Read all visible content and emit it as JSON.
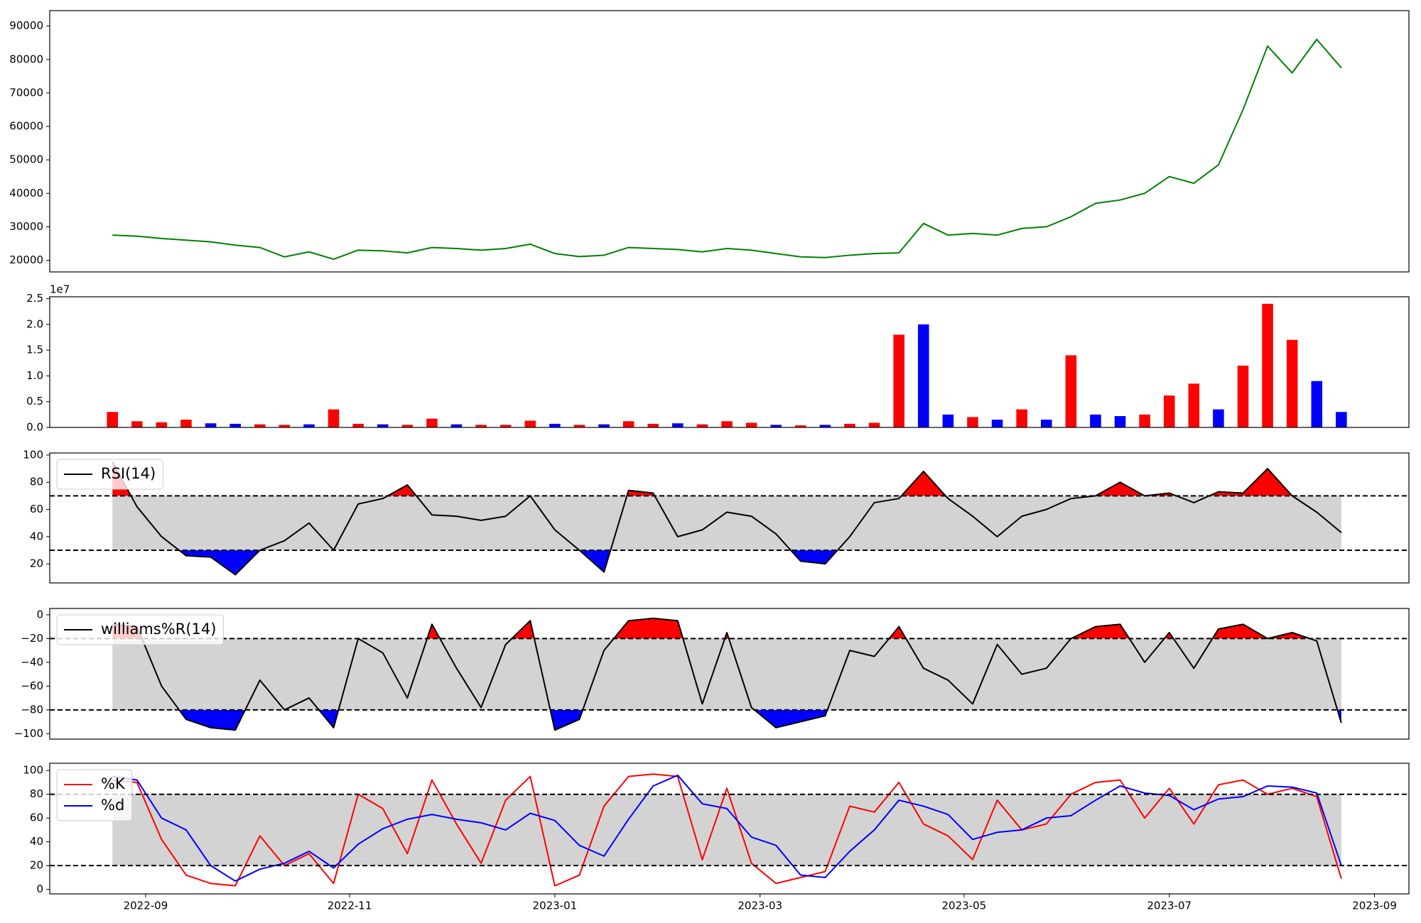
{
  "chart_data": [
    {
      "type": "line",
      "color": "green",
      "x": [
        2022.64,
        2022.66,
        2022.68,
        2022.7,
        2022.72,
        2022.74,
        2022.76,
        2022.78,
        2022.8,
        2022.82,
        2022.84,
        2022.86,
        2022.88,
        2022.9,
        2022.92,
        2022.94,
        2022.96,
        2022.98,
        2023,
        2023.02,
        2023.04,
        2023.06,
        2023.08,
        2023.1,
        2023.12,
        2023.14,
        2023.16,
        2023.18,
        2023.2,
        2023.22,
        2023.24,
        2023.26,
        2023.28,
        2023.3,
        2023.32,
        2023.34,
        2023.36,
        2023.38,
        2023.4,
        2023.42,
        2023.44,
        2023.46,
        2023.48,
        2023.5,
        2023.52,
        2023.54,
        2023.56,
        2023.58,
        2023.6,
        2023.62,
        2023.64
      ],
      "values": [
        27500,
        27200,
        26500,
        26000,
        25500,
        24500,
        23800,
        21000,
        22500,
        20300,
        23000,
        22800,
        22200,
        23800,
        23500,
        23000,
        23500,
        24800,
        22000,
        21100,
        21500,
        23800,
        23500,
        23200,
        22500,
        23500,
        23000,
        22000,
        21000,
        20800,
        21500,
        22000,
        22200,
        31000,
        27500,
        28000,
        27500,
        29500,
        30000,
        33000,
        37000,
        38000,
        40000,
        45000,
        43000,
        48500,
        65000,
        84000,
        76000,
        86000,
        77500
      ],
      "xlim": [
        2022.589,
        2023.695
      ],
      "ylim": [
        16500,
        94600
      ],
      "yticks": [
        20000,
        30000,
        40000,
        50000,
        60000,
        70000,
        80000,
        90000
      ]
    },
    {
      "type": "bar",
      "offset_label": "1e7",
      "x": [
        2022.64,
        2022.66,
        2022.68,
        2022.7,
        2022.72,
        2022.74,
        2022.76,
        2022.78,
        2022.8,
        2022.82,
        2022.84,
        2022.86,
        2022.88,
        2022.9,
        2022.92,
        2022.94,
        2022.96,
        2022.98,
        2023,
        2023.02,
        2023.04,
        2023.06,
        2023.08,
        2023.1,
        2023.12,
        2023.14,
        2023.16,
        2023.18,
        2023.2,
        2023.22,
        2023.24,
        2023.26,
        2023.28,
        2023.3,
        2023.32,
        2023.34,
        2023.36,
        2023.38,
        2023.4,
        2023.42,
        2023.44,
        2023.46,
        2023.48,
        2023.5,
        2023.52,
        2023.54,
        2023.56,
        2023.58,
        2023.6,
        2023.62,
        2023.64
      ],
      "values": [
        3000000,
        1200000,
        1000000,
        1500000,
        800000,
        700000,
        600000,
        500000,
        600000,
        3500000,
        700000,
        600000,
        500000,
        1700000,
        600000,
        500000,
        500000,
        1300000,
        700000,
        500000,
        600000,
        1200000,
        700000,
        800000,
        600000,
        1200000,
        900000,
        500000,
        400000,
        500000,
        700000,
        900000,
        18000000,
        20000000,
        2500000,
        2000000,
        1500000,
        3500000,
        1500000,
        14000000,
        2500000,
        2200000,
        2500000,
        6200000,
        8500000,
        3500000,
        12000000,
        24000000,
        17000000,
        9000000,
        3000000
      ],
      "colors": [
        "red",
        "red",
        "red",
        "red",
        "blue",
        "blue",
        "red",
        "red",
        "blue",
        "red",
        "red",
        "blue",
        "red",
        "red",
        "blue",
        "red",
        "red",
        "red",
        "blue",
        "red",
        "blue",
        "red",
        "red",
        "blue",
        "red",
        "red",
        "red",
        "blue",
        "red",
        "blue",
        "red",
        "red",
        "red",
        "blue",
        "blue",
        "red",
        "blue",
        "red",
        "blue",
        "red",
        "blue",
        "blue",
        "red",
        "red",
        "red",
        "blue",
        "red",
        "red",
        "red",
        "blue",
        "blue"
      ],
      "xlim": [
        2022.589,
        2023.695
      ],
      "ylim": [
        0,
        25360000
      ],
      "yticks": [
        {
          "value": 0,
          "label": "0.0"
        },
        {
          "value": 5000000,
          "label": "0.5"
        },
        {
          "value": 10000000,
          "label": "1.0"
        },
        {
          "value": 15000000,
          "label": "1.5"
        },
        {
          "value": 20000000,
          "label": "2.0"
        },
        {
          "value": 25000000,
          "label": "2.5"
        }
      ]
    },
    {
      "type": "line",
      "legend": "upper left",
      "hlines": [
        70,
        30
      ],
      "band_color": "lightgray",
      "fill_above_color": "red",
      "fill_below_color": "blue",
      "x": [
        2022.64,
        2022.66,
        2022.68,
        2022.7,
        2022.72,
        2022.74,
        2022.76,
        2022.78,
        2022.8,
        2022.82,
        2022.84,
        2022.86,
        2022.88,
        2022.9,
        2022.92,
        2022.94,
        2022.96,
        2022.98,
        2023,
        2023.02,
        2023.04,
        2023.06,
        2023.08,
        2023.1,
        2023.12,
        2023.14,
        2023.16,
        2023.18,
        2023.2,
        2023.22,
        2023.24,
        2023.26,
        2023.28,
        2023.3,
        2023.32,
        2023.34,
        2023.36,
        2023.38,
        2023.4,
        2023.42,
        2023.44,
        2023.46,
        2023.48,
        2023.5,
        2023.52,
        2023.54,
        2023.56,
        2023.58,
        2023.6,
        2023.62,
        2023.64
      ],
      "series": [
        {
          "name": "RSI(14)",
          "color": "black",
          "values": [
            95,
            62,
            40,
            26,
            25,
            12,
            30,
            37,
            50,
            30,
            64,
            68,
            78,
            56,
            55,
            52,
            55,
            70,
            45,
            30,
            14,
            74,
            72,
            40,
            45,
            58,
            55,
            42,
            22,
            20,
            40,
            65,
            68,
            88,
            68,
            55,
            40,
            55,
            60,
            68,
            70,
            80,
            70,
            72,
            65,
            73,
            72,
            90,
            70,
            58,
            43
          ]
        }
      ],
      "xlim": [
        2022.589,
        2023.695
      ],
      "ylim": [
        6,
        101.5
      ],
      "yticks": [
        20,
        40,
        60,
        80,
        100
      ]
    },
    {
      "type": "line",
      "legend": "upper left",
      "hlines": [
        -20,
        -80
      ],
      "band_color": "lightgray",
      "fill_above_color": "red",
      "fill_below_color": "blue",
      "x": [
        2022.64,
        2022.66,
        2022.68,
        2022.7,
        2022.72,
        2022.74,
        2022.76,
        2022.78,
        2022.8,
        2022.82,
        2022.84,
        2022.86,
        2022.88,
        2022.9,
        2022.92,
        2022.94,
        2022.96,
        2022.98,
        2023,
        2023.02,
        2023.04,
        2023.06,
        2023.08,
        2023.1,
        2023.12,
        2023.14,
        2023.16,
        2023.18,
        2023.2,
        2023.22,
        2023.24,
        2023.26,
        2023.28,
        2023.3,
        2023.32,
        2023.34,
        2023.36,
        2023.38,
        2023.4,
        2023.42,
        2023.44,
        2023.46,
        2023.48,
        2023.5,
        2023.52,
        2023.54,
        2023.56,
        2023.58,
        2023.6,
        2023.62,
        2023.64
      ],
      "series": [
        {
          "name": "williams%R(14)",
          "color": "black",
          "values": [
            -8,
            -10,
            -60,
            -88,
            -95,
            -97,
            -55,
            -80,
            -70,
            -95,
            -20,
            -32,
            -70,
            -8,
            -45,
            -78,
            -25,
            -5,
            -97,
            -88,
            -30,
            -5,
            -3,
            -5,
            -75,
            -15,
            -78,
            -95,
            -90,
            -85,
            -30,
            -35,
            -10,
            -45,
            -55,
            -75,
            -25,
            -50,
            -45,
            -20,
            -10,
            -8,
            -40,
            -15,
            -45,
            -12,
            -8,
            -20,
            -15,
            -22,
            -91
          ]
        }
      ],
      "xlim": [
        2022.589,
        2023.695
      ],
      "ylim": [
        -104.6,
        5.3
      ],
      "yticks": [
        {
          "value": -100,
          "label": "−100"
        },
        {
          "value": -80,
          "label": "−80"
        },
        {
          "value": -60,
          "label": "−60"
        },
        {
          "value": -40,
          "label": "−40"
        },
        {
          "value": -20,
          "label": "−20"
        },
        0
      ]
    },
    {
      "type": "line",
      "legend": "upper left",
      "hlines": [
        80,
        20
      ],
      "band_color": "lightgray",
      "x": [
        2022.64,
        2022.66,
        2022.68,
        2022.7,
        2022.72,
        2022.74,
        2022.76,
        2022.78,
        2022.8,
        2022.82,
        2022.84,
        2022.86,
        2022.88,
        2022.9,
        2022.92,
        2022.94,
        2022.96,
        2022.98,
        2023,
        2023.02,
        2023.04,
        2023.06,
        2023.08,
        2023.1,
        2023.12,
        2023.14,
        2023.16,
        2023.18,
        2023.2,
        2023.22,
        2023.24,
        2023.26,
        2023.28,
        2023.3,
        2023.32,
        2023.34,
        2023.36,
        2023.38,
        2023.4,
        2023.42,
        2023.44,
        2023.46,
        2023.48,
        2023.5,
        2023.52,
        2023.54,
        2023.56,
        2023.58,
        2023.6,
        2023.62,
        2023.64
      ],
      "series": [
        {
          "name": "%K",
          "color": "red",
          "values": [
            92,
            90,
            42,
            12,
            5,
            3,
            45,
            20,
            30,
            5,
            80,
            68,
            30,
            92,
            55,
            22,
            75,
            95,
            3,
            12,
            70,
            95,
            97,
            95,
            25,
            85,
            22,
            5,
            10,
            15,
            70,
            65,
            90,
            55,
            45,
            25,
            75,
            50,
            55,
            80,
            90,
            92,
            60,
            85,
            55,
            88,
            92,
            80,
            85,
            78,
            9
          ]
        },
        {
          "name": "%d",
          "color": "blue",
          "values": [
            95,
            92,
            60,
            50,
            20,
            7,
            17,
            22,
            32,
            18,
            38,
            51,
            59,
            63,
            59,
            56,
            50,
            64,
            58,
            37,
            28,
            59,
            87,
            96,
            72,
            68,
            44,
            37,
            12,
            10,
            32,
            50,
            75,
            70,
            63,
            42,
            48,
            50,
            60,
            62,
            75,
            87,
            81,
            79,
            67,
            76,
            78,
            87,
            86,
            81,
            20
          ]
        }
      ],
      "xlim": [
        2022.589,
        2023.695
      ],
      "ylim": [
        -3.8,
        106.1
      ],
      "yticks": [
        0,
        20,
        40,
        60,
        80,
        100
      ],
      "xticks": [
        {
          "value": 2022.667,
          "label": "2022-09"
        },
        {
          "value": 2022.833,
          "label": "2022-11"
        },
        {
          "value": 2023.0,
          "label": "2023-01"
        },
        {
          "value": 2023.167,
          "label": "2023-03"
        },
        {
          "value": 2023.333,
          "label": "2023-05"
        },
        {
          "value": 2023.5,
          "label": "2023-07"
        },
        {
          "value": 2023.667,
          "label": "2023-09"
        }
      ]
    }
  ]
}
